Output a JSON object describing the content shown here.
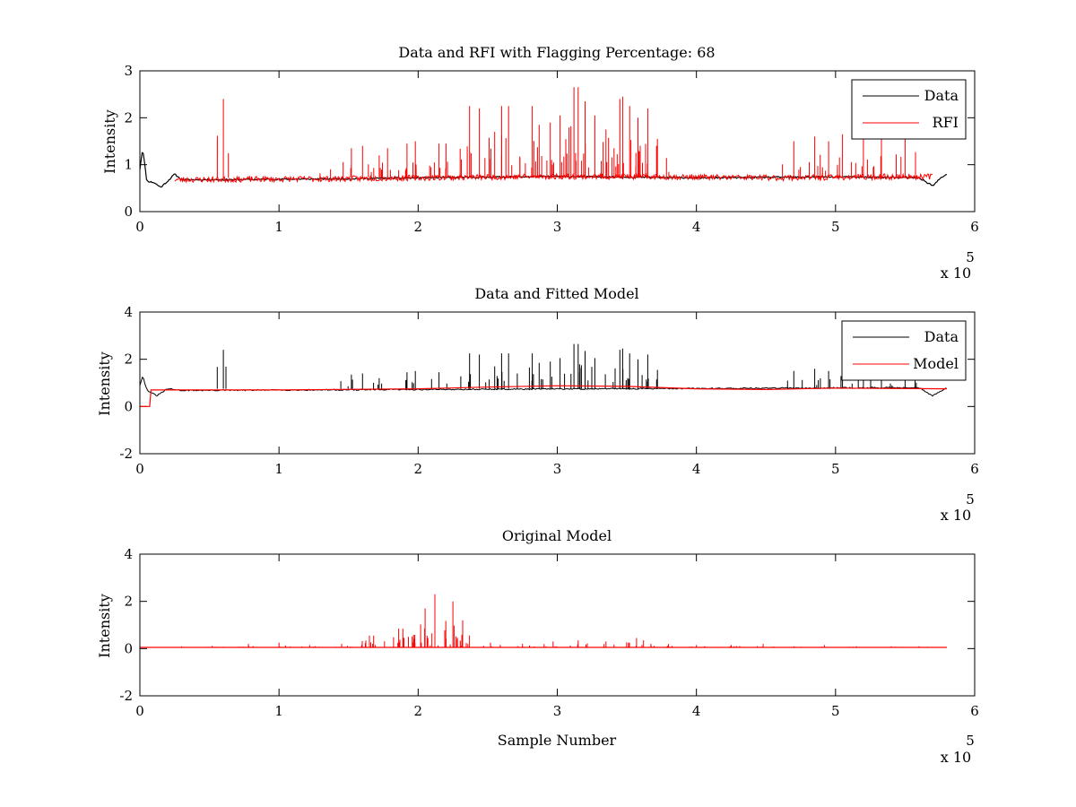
{
  "chart_data": [
    {
      "type": "line",
      "title": "Data and RFI with Flagging Percentage: 68",
      "xlabel": "",
      "ylabel": "Intensity",
      "xlim": [
        0,
        600000
      ],
      "ylim": [
        0,
        3
      ],
      "xticks": [
        "0",
        "1",
        "2",
        "3",
        "4",
        "5",
        "6"
      ],
      "yticks": [
        "0",
        "1",
        "2",
        "3"
      ],
      "x_multiplier": {
        "base": "x 10",
        "exponent": "5"
      },
      "legend": {
        "position": "top-right",
        "entries": [
          "Data",
          "RFI"
        ]
      },
      "series": [
        {
          "name": "Data",
          "color": "#000000",
          "description_points": {
            "x": [
              0,
              2000,
              5000,
              10000,
              15000,
              20000,
              25000,
              30000,
              60000,
              100000,
              150000,
              200000,
              300000,
              400000,
              500000,
              560000,
              570000,
              575000,
              580000
            ],
            "y": [
              0.9,
              1.35,
              0.65,
              0.62,
              0.52,
              0.65,
              0.8,
              0.68,
              0.68,
              0.69,
              0.7,
              0.72,
              0.75,
              0.72,
              0.74,
              0.72,
              0.55,
              0.7,
              0.8
            ]
          }
        },
        {
          "name": "RFI",
          "color": "#ff0000",
          "spikes": {
            "x": [
              60000,
              137000,
              152000,
              160000,
              172000,
              178000,
              192000,
              198000,
              215000,
              220000,
              237000,
              244000,
              255000,
              260000,
              265000,
              282000,
              287000,
              295000,
              302000,
              312000,
              315000,
              320000,
              327000,
              335000,
              345000,
              347000,
              352000,
              358000,
              365000,
              372000,
              470000,
              485000,
              495000,
              505000,
              520000,
              533000,
              550000
            ],
            "y": [
              2.4,
              0.9,
              1.35,
              1.4,
              1.2,
              1.35,
              1.45,
              1.5,
              1.45,
              1.45,
              2.25,
              2.2,
              1.7,
              2.25,
              2.25,
              2.25,
              1.85,
              1.9,
              2.05,
              2.65,
              2.65,
              2.35,
              2.05,
              1.75,
              2.4,
              2.45,
              2.25,
              2.0,
              2.2,
              1.55,
              1.5,
              1.6,
              1.5,
              1.65,
              1.55,
              1.6,
              1.75
            ]
          }
        }
      ]
    },
    {
      "type": "line",
      "title": "Data and Fitted Model",
      "xlabel": "",
      "ylabel": "Intensity",
      "xlim": [
        0,
        600000
      ],
      "ylim": [
        -2,
        4
      ],
      "xticks": [
        "0",
        "1",
        "2",
        "3",
        "4",
        "5",
        "6"
      ],
      "yticks": [
        "-2",
        "0",
        "2",
        "4"
      ],
      "x_multiplier": {
        "base": "x 10",
        "exponent": "5"
      },
      "legend": {
        "position": "top-right",
        "entries": [
          "Data",
          "Model"
        ]
      },
      "series": [
        {
          "name": "Data",
          "color": "#000000",
          "spikes": {
            "x": [
              60000,
              152000,
              160000,
              172000,
              192000,
              198000,
              215000,
              237000,
              244000,
              255000,
              260000,
              265000,
              282000,
              287000,
              295000,
              302000,
              312000,
              315000,
              320000,
              327000,
              345000,
              347000,
              352000,
              358000,
              365000,
              372000,
              470000,
              485000,
              495000,
              505000,
              520000,
              533000,
              550000
            ],
            "y": [
              2.4,
              1.35,
              1.4,
              1.2,
              1.45,
              1.5,
              1.45,
              2.25,
              2.2,
              1.7,
              2.25,
              2.25,
              2.25,
              1.85,
              1.9,
              2.05,
              2.65,
              2.65,
              2.35,
              2.05,
              2.4,
              2.45,
              2.25,
              2.0,
              2.2,
              1.55,
              1.5,
              1.6,
              1.5,
              1.65,
              1.55,
              1.6,
              1.75
            ]
          }
        },
        {
          "name": "Model",
          "color": "#ff0000",
          "description_points": {
            "x": [
              0,
              7000,
              8000,
              30000,
              100000,
              200000,
              250000,
              300000,
              350000,
              400000,
              450000,
              500000,
              580000
            ],
            "y": [
              0.0,
              0.0,
              0.7,
              0.7,
              0.7,
              0.75,
              0.82,
              0.88,
              0.85,
              0.75,
              0.72,
              0.78,
              0.75
            ]
          }
        }
      ]
    },
    {
      "type": "line",
      "title": "Original Model",
      "xlabel": "Sample Number",
      "ylabel": "Intensity",
      "xlim": [
        0,
        600000
      ],
      "ylim": [
        -2,
        4
      ],
      "xticks": [
        "0",
        "1",
        "2",
        "3",
        "4",
        "5",
        "6"
      ],
      "yticks": [
        "-2",
        "0",
        "2",
        "4"
      ],
      "x_multiplier": {
        "base": "x 10",
        "exponent": "5"
      },
      "series": [
        {
          "name": "Original Model",
          "color": "#ff0000",
          "baseline": 0.05,
          "spikes": {
            "x": [
              30000,
              52000,
              78000,
              100000,
              122000,
              145000,
              165000,
              168000,
              186000,
              189000,
              193000,
              205000,
              207000,
              212000,
              225000,
              228000,
              232000,
              252000,
              275000,
              297000,
              315000,
              335000,
              357000,
              362000,
              380000,
              400000,
              425000,
              448000,
              470000,
              492000,
              515000,
              540000,
              560000
            ],
            "y": [
              0.1,
              0.12,
              0.2,
              0.25,
              0.15,
              0.2,
              0.55,
              0.55,
              0.85,
              0.85,
              0.5,
              1.7,
              0.45,
              2.3,
              2.0,
              0.4,
              1.2,
              0.25,
              0.2,
              0.3,
              0.35,
              0.3,
              0.45,
              0.35,
              0.2,
              0.15,
              0.15,
              0.2,
              0.1,
              0.15,
              0.1,
              0.1,
              0.1
            ]
          }
        }
      ]
    }
  ]
}
